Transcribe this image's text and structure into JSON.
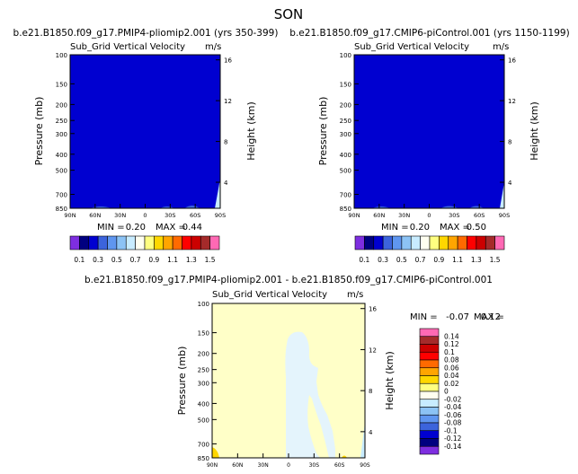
{
  "title": "SON",
  "variable": "Sub_Grid Vertical Velocity",
  "units": "m/s",
  "yleft_label": "Pressure (mb)",
  "yright_label": "Height (km)",
  "pressure_ticks": [
    "100",
    "150",
    "200",
    "250",
    "300",
    "400",
    "500",
    "700",
    "850"
  ],
  "height_ticks": [
    "16",
    "12",
    "8",
    "4"
  ],
  "lat_ticks": [
    "90N",
    "60N",
    "30N",
    "0",
    "30S",
    "60S",
    "90S"
  ],
  "panels": [
    {
      "title": "b.e21.B1850.f09_g17.PMIP4-pliomip2.001 (yrs 350-399)",
      "min_label": "MIN =",
      "min": "0.20",
      "max_label": "MAX =",
      "max": "0.44"
    },
    {
      "title": "b.e21.B1850.f09_g17.CMIP6-piControl.001 (yrs 1150-1199)",
      "min_label": "MIN =",
      "min": "0.20",
      "max_label": "MAX =",
      "max": "0.50"
    },
    {
      "title": "b.e21.B1850.f09_g17.PMIP4-pliomip2.001 - b.e21.B1850.f09_g17.CMIP6-piControl.001",
      "min_label": "MIN =",
      "min": "-0.07",
      "max_label": "MAX =",
      "max": "0.12"
    }
  ],
  "colorbar_abs": {
    "labels": [
      "0.1",
      "0.3",
      "0.5",
      "0.7",
      "0.9",
      "1.1",
      "1.3",
      "1.5"
    ],
    "colors": [
      "#7e2ee0",
      "#000080",
      "#0000d0",
      "#3c64dc",
      "#5f96f0",
      "#8cc3f5",
      "#c8ecff",
      "#fffff0",
      "#ffff80",
      "#ffd700",
      "#ffa500",
      "#ff6a00",
      "#ff0000",
      "#cc0000",
      "#a52a2a",
      "#ff69b4"
    ]
  },
  "colorbar_diff": {
    "labels": [
      "0.14",
      "0.12",
      "0.1",
      "0.08",
      "0.06",
      "0.04",
      "0.02",
      "0",
      "-0.02",
      "-0.04",
      "-0.06",
      "-0.08",
      "-0.1",
      "-0.12",
      "-0.14"
    ],
    "colors": [
      "#ff69b4",
      "#a52a2a",
      "#cc0000",
      "#ff0000",
      "#ff6a00",
      "#ffa500",
      "#ffd700",
      "#ffff80",
      "#fffff0",
      "#c8ecff",
      "#8cc3f5",
      "#5f96f0",
      "#3c64dc",
      "#0000d0",
      "#000080",
      "#7e2ee0"
    ]
  },
  "chart_data": [
    {
      "type": "heatmap",
      "title": "b.e21.B1850.f09_g17.PMIP4-pliomip2.001 (yrs 350-399)",
      "subtitle": "Sub_Grid Vertical Velocity",
      "ylabel": "Pressure (mb)",
      "y2label": "Height (km)",
      "units": "m/s",
      "x": [
        "90N",
        "60N",
        "30N",
        "0",
        "30S",
        "60S",
        "90S"
      ],
      "y": [
        100,
        150,
        200,
        250,
        300,
        400,
        500,
        700,
        850
      ],
      "min": 0.2,
      "max": 0.44,
      "levels": [
        0.1,
        0.2,
        0.3,
        0.4,
        0.5,
        0.6,
        0.7,
        0.8,
        0.9,
        1.0,
        1.1,
        1.2,
        1.3,
        1.4,
        1.5
      ],
      "dominant_range": "0.2-0.3"
    },
    {
      "type": "heatmap",
      "title": "b.e21.B1850.f09_g17.CMIP6-piControl.001 (yrs 1150-1199)",
      "subtitle": "Sub_Grid Vertical Velocity",
      "ylabel": "Pressure (mb)",
      "y2label": "Height (km)",
      "units": "m/s",
      "x": [
        "90N",
        "60N",
        "30N",
        "0",
        "30S",
        "60S",
        "90S"
      ],
      "y": [
        100,
        150,
        200,
        250,
        300,
        400,
        500,
        700,
        850
      ],
      "min": 0.2,
      "max": 0.5,
      "levels": [
        0.1,
        0.2,
        0.3,
        0.4,
        0.5,
        0.6,
        0.7,
        0.8,
        0.9,
        1.0,
        1.1,
        1.2,
        1.3,
        1.4,
        1.5
      ],
      "dominant_range": "0.2-0.3"
    },
    {
      "type": "heatmap",
      "title": "b.e21.B1850.f09_g17.PMIP4-pliomip2.001 - b.e21.B1850.f09_g17.CMIP6-piControl.001",
      "subtitle": "Sub_Grid Vertical Velocity",
      "ylabel": "Pressure (mb)",
      "y2label": "Height (km)",
      "units": "m/s",
      "x": [
        "90N",
        "60N",
        "30N",
        "0",
        "30S",
        "60S",
        "90S"
      ],
      "y": [
        100,
        150,
        200,
        250,
        300,
        400,
        500,
        700,
        850
      ],
      "min": -0.07,
      "max": 0.12,
      "levels": [
        -0.14,
        -0.12,
        -0.1,
        -0.08,
        -0.06,
        -0.04,
        -0.02,
        0,
        0.02,
        0.04,
        0.06,
        0.08,
        0.1,
        0.12,
        0.14
      ],
      "dominant_range": "0-0.02"
    }
  ]
}
